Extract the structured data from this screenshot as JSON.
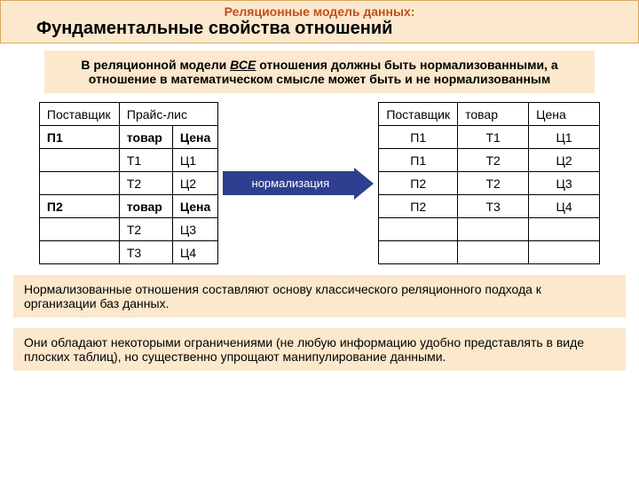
{
  "header": {
    "subtitle": "Реляционные модель данных:",
    "title": "Фундаментальные свойства отношений"
  },
  "intro": {
    "pre": "В реляционной модели ",
    "em": "ВСЕ",
    "post": " отношения должны быть нормализованными, а отношение в математическом смысле может быть и не нормализованным"
  },
  "leftTable": {
    "rows": [
      [
        "Поставщик",
        "Прайс-лис",
        ""
      ],
      [
        "П1",
        "товар",
        "Цена"
      ],
      [
        "",
        "Т1",
        "Ц1"
      ],
      [
        "",
        "Т2",
        "Ц2"
      ],
      [
        "П2",
        "товар",
        "Цена"
      ],
      [
        "",
        "Т2",
        "Ц3"
      ],
      [
        "",
        "Т3",
        "Ц4"
      ]
    ]
  },
  "arrow": {
    "label": "нормализация"
  },
  "rightTable": {
    "rows": [
      [
        "Поставщик",
        "товар",
        "Цена"
      ],
      [
        "П1",
        "Т1",
        "Ц1"
      ],
      [
        "П1",
        "Т2",
        "Ц2"
      ],
      [
        "П2",
        "Т2",
        "Ц3"
      ],
      [
        "П2",
        "Т3",
        "Ц4"
      ],
      [
        "",
        "",
        ""
      ],
      [
        "",
        "",
        ""
      ]
    ]
  },
  "note1": "Нормализованные отношения составляют основу классического реляционного подхода к организации баз данных.",
  "note2": "Они обладают некоторыми ограничениями (не любую информацию удобно представлять в виде плоских таблиц), но существенно упрощают манипулирование данными.",
  "colors": {
    "boxBg": "#fce8cc",
    "boxBorder": "#d4a860",
    "subColor": "#c05020",
    "arrowBg": "#2e3f8f"
  }
}
